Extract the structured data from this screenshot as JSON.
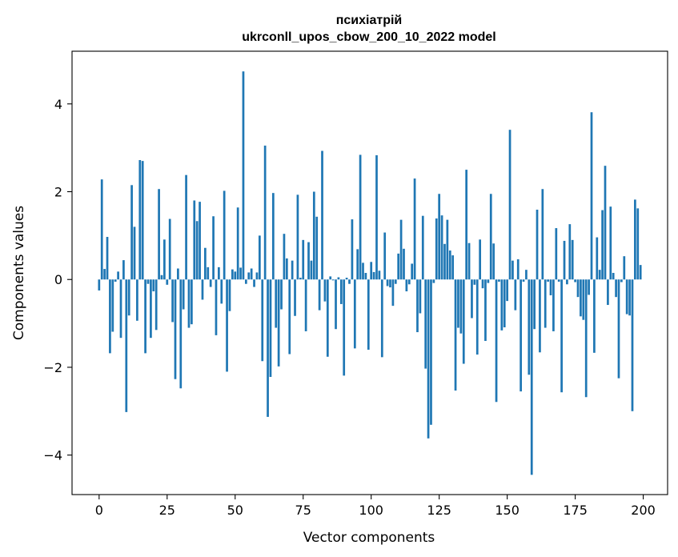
{
  "chart_data": {
    "type": "bar",
    "title_line1": "психіатрій",
    "title_line2": "ukrconll_upos_cbow_200_10_2022 model",
    "xlabel": "Vector components",
    "ylabel": "Components values",
    "xlim": [
      -9.95,
      208.95
    ],
    "ylim": [
      -4.9,
      5.2
    ],
    "xticks": [
      0,
      25,
      50,
      75,
      100,
      125,
      150,
      175,
      200
    ],
    "yticks": [
      -4,
      -2,
      0,
      2,
      4
    ],
    "ytick_labels": [
      "−4",
      "−2",
      "0",
      "2",
      "4"
    ],
    "grid": false,
    "bar_color": "#1f77b4",
    "x": [
      0,
      1,
      2,
      3,
      4,
      5,
      6,
      7,
      8,
      9,
      10,
      11,
      12,
      13,
      14,
      15,
      16,
      17,
      18,
      19,
      20,
      21,
      22,
      23,
      24,
      25,
      26,
      27,
      28,
      29,
      30,
      31,
      32,
      33,
      34,
      35,
      36,
      37,
      38,
      39,
      40,
      41,
      42,
      43,
      44,
      45,
      46,
      47,
      48,
      49,
      50,
      51,
      52,
      53,
      54,
      55,
      56,
      57,
      58,
      59,
      60,
      61,
      62,
      63,
      64,
      65,
      66,
      67,
      68,
      69,
      70,
      71,
      72,
      73,
      74,
      75,
      76,
      77,
      78,
      79,
      80,
      81,
      82,
      83,
      84,
      85,
      86,
      87,
      88,
      89,
      90,
      91,
      92,
      93,
      94,
      95,
      96,
      97,
      98,
      99,
      100,
      101,
      102,
      103,
      104,
      105,
      106,
      107,
      108,
      109,
      110,
      111,
      112,
      113,
      114,
      115,
      116,
      117,
      118,
      119,
      120,
      121,
      122,
      123,
      124,
      125,
      126,
      127,
      128,
      129,
      130,
      131,
      132,
      133,
      134,
      135,
      136,
      137,
      138,
      139,
      140,
      141,
      142,
      143,
      144,
      145,
      146,
      147,
      148,
      149,
      150,
      151,
      152,
      153,
      154,
      155,
      156,
      157,
      158,
      159,
      160,
      161,
      162,
      163,
      164,
      165,
      166,
      167,
      168,
      169,
      170,
      171,
      172,
      173,
      174,
      175,
      176,
      177,
      178,
      179,
      180,
      181,
      182,
      183,
      184,
      185,
      186,
      187,
      188,
      189,
      190,
      191,
      192,
      193,
      194,
      195,
      196,
      197,
      198,
      199
    ],
    "values": [
      -0.25,
      2.28,
      0.24,
      0.97,
      -1.68,
      -1.19,
      -0.05,
      0.18,
      -1.33,
      0.44,
      -3.02,
      -0.82,
      2.15,
      1.2,
      -0.94,
      2.72,
      2.7,
      -1.68,
      -0.1,
      -1.33,
      -0.27,
      -1.15,
      2.06,
      0.1,
      0.91,
      -0.12,
      1.38,
      -0.97,
      -2.27,
      0.25,
      -2.48,
      -0.68,
      2.38,
      -1.1,
      -1.02,
      1.8,
      1.33,
      1.77,
      -0.46,
      0.72,
      0.28,
      -0.17,
      1.44,
      -1.27,
      0.28,
      -0.55,
      2.02,
      -2.1,
      -0.72,
      0.23,
      0.18,
      1.64,
      0.27,
      4.74,
      -0.1,
      0.16,
      0.25,
      -0.17,
      0.16,
      1.0,
      -1.86,
      3.05,
      -3.13,
      -2.22,
      1.97,
      -1.1,
      -1.98,
      -0.68,
      1.04,
      0.48,
      -1.7,
      0.43,
      -0.83,
      1.93,
      0.04,
      0.9,
      -1.18,
      0.85,
      0.43,
      2.0,
      1.43,
      -0.7,
      2.93,
      -0.5,
      -1.76,
      0.07,
      -0.02,
      -1.13,
      0.05,
      -0.56,
      -2.19,
      0.04,
      -0.1,
      1.37,
      -1.57,
      0.69,
      2.84,
      0.38,
      0.15,
      -1.6,
      0.4,
      0.17,
      2.83,
      0.2,
      -1.77,
      1.07,
      -0.15,
      -0.18,
      -0.6,
      -0.1,
      0.59,
      1.36,
      0.7,
      -0.27,
      -0.11,
      0.36,
      2.3,
      -1.2,
      -0.77,
      1.45,
      -2.03,
      -3.62,
      -3.31,
      -0.08,
      1.39,
      1.95,
      1.46,
      0.81,
      1.36,
      0.66,
      0.55,
      -2.53,
      -1.1,
      -1.23,
      -1.92,
      2.5,
      0.83,
      -0.88,
      -0.12,
      -1.71,
      0.91,
      -0.2,
      -1.4,
      -0.08,
      1.95,
      0.82,
      -2.79,
      -0.05,
      -1.16,
      -1.09,
      -0.49,
      3.41,
      0.43,
      -0.7,
      0.46,
      -2.55,
      -0.05,
      0.22,
      -2.17,
      -4.45,
      -1.13,
      1.59,
      -1.66,
      2.06,
      -1.1,
      -0.05,
      -0.36,
      -1.18,
      1.17,
      -0.05,
      -2.57,
      0.88,
      -0.11,
      1.26,
      0.9,
      -0.06,
      -0.4,
      -0.84,
      -0.92,
      -2.68,
      -0.35,
      3.81,
      -1.67,
      0.96,
      0.22,
      1.58,
      2.59,
      -0.58,
      1.66,
      0.15,
      -0.4,
      -2.25,
      -0.06,
      0.53,
      -0.79,
      -0.82,
      -3.0,
      1.82,
      1.62,
      0.33
    ]
  }
}
